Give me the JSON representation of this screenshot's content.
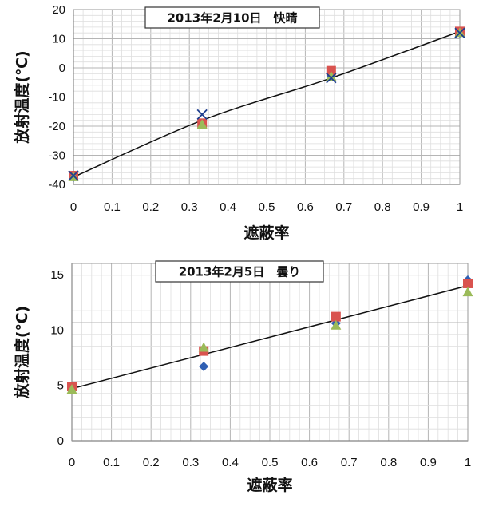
{
  "chart_data": [
    {
      "type": "scatter",
      "title": "2013年2月10日　快晴",
      "xlabel": "遮蔽率",
      "ylabel": "放射温度(℃)",
      "xlim": [
        0,
        1
      ],
      "ylim": [
        -40,
        20
      ],
      "xticks": [
        0,
        0.1,
        0.2,
        0.3,
        0.4,
        0.5,
        0.6,
        0.7,
        0.8,
        0.9,
        1
      ],
      "xtick_labels": [
        "0",
        "0.1",
        "0.2",
        "0.3",
        "0.4",
        "0.5",
        "0.6",
        "0.7",
        "0.8",
        "0.9",
        "1"
      ],
      "yticks": [
        -40,
        -30,
        -20,
        -10,
        0,
        10,
        20
      ],
      "ytick_labels": [
        "-40",
        "-30",
        "-20",
        "-10",
        "0",
        "10",
        "20"
      ],
      "grid": true,
      "series": [
        {
          "marker": "diamond",
          "color": "#2f5fb3",
          "x": [
            0,
            0.333,
            0.667,
            1
          ],
          "y": [
            -37.5,
            -19.5,
            -3.0,
            12.0
          ]
        },
        {
          "marker": "square",
          "color": "#d9534f",
          "x": [
            0,
            0.333,
            0.667,
            1
          ],
          "y": [
            -37.0,
            -19.0,
            -1.0,
            12.5
          ]
        },
        {
          "marker": "triangle",
          "color": "#9bbb59",
          "x": [
            0,
            0.333,
            0.667,
            1
          ],
          "y": [
            -37.5,
            -19.5,
            -3.0,
            12.0
          ]
        },
        {
          "marker": "x",
          "color": "#1f3f8f",
          "x": [
            0,
            0.333,
            0.667,
            1
          ],
          "y": [
            -37.0,
            -16.0,
            -3.5,
            12.0
          ]
        }
      ],
      "fit_curve": {
        "x": [
          0,
          0.333,
          0.667,
          1
        ],
        "y": [
          -37.5,
          -18.0,
          -3.5,
          12.5
        ]
      }
    },
    {
      "type": "scatter",
      "title": "2013年2月5日　曇り",
      "xlabel": "遮蔽率",
      "ylabel": "放射温度(℃)",
      "xlim": [
        0,
        1
      ],
      "ylim": [
        0,
        16
      ],
      "xticks": [
        0,
        0.1,
        0.2,
        0.3,
        0.4,
        0.5,
        0.6,
        0.7,
        0.8,
        0.9,
        1
      ],
      "xtick_labels": [
        "0",
        "0.1",
        "0.2",
        "0.3",
        "0.4",
        "0.5",
        "0.6",
        "0.7",
        "0.8",
        "0.9",
        "1"
      ],
      "yticks": [
        0,
        5,
        10,
        15
      ],
      "ytick_labels": [
        "0",
        "5",
        "10",
        "15"
      ],
      "grid": true,
      "series": [
        {
          "marker": "diamond",
          "color": "#2f5fb3",
          "x": [
            0,
            0.333,
            0.667,
            1
          ],
          "y": [
            4.7,
            6.7,
            10.6,
            14.5
          ]
        },
        {
          "marker": "square",
          "color": "#d9534f",
          "x": [
            0,
            0.333,
            0.667,
            1
          ],
          "y": [
            4.9,
            8.1,
            11.2,
            14.2
          ]
        },
        {
          "marker": "triangle",
          "color": "#9bbb59",
          "x": [
            0,
            0.333,
            0.667,
            1
          ],
          "y": [
            4.6,
            8.4,
            10.4,
            13.4
          ]
        }
      ],
      "fit_line": {
        "x": [
          0,
          1
        ],
        "y": [
          4.7,
          14.0
        ]
      }
    }
  ]
}
